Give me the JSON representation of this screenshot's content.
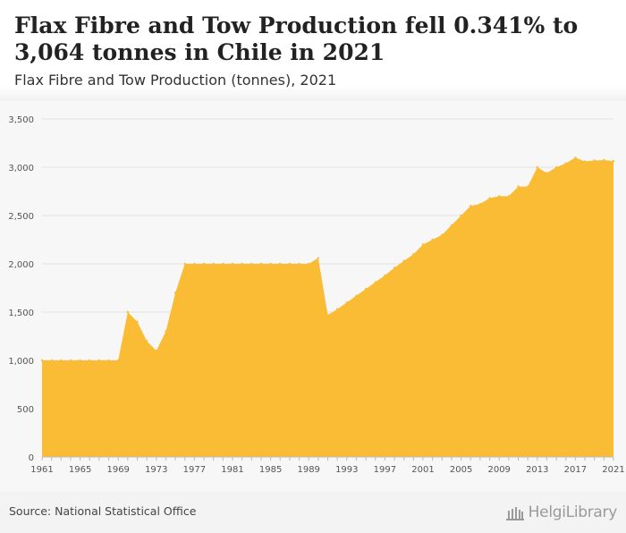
{
  "header": {
    "title": "Flax Fibre and Tow Production fell 0.341% to 3,064 tonnes in Chile in 2021",
    "subtitle": "Flax Fibre and Tow Production (tonnes), 2021"
  },
  "footer": {
    "source": "Source: National Statistical Office",
    "logo_text": "HelgiLibrary"
  },
  "colors": {
    "area_fill": "#f9bc34",
    "grid": "#e2e2e2",
    "axis_text": "#555555"
  },
  "chart_data": {
    "type": "area",
    "title": "",
    "xlabel": "",
    "ylabel": "",
    "x": [
      1961,
      1962,
      1963,
      1964,
      1965,
      1966,
      1967,
      1968,
      1969,
      1970,
      1971,
      1972,
      1973,
      1974,
      1975,
      1976,
      1977,
      1978,
      1979,
      1980,
      1981,
      1982,
      1983,
      1984,
      1985,
      1986,
      1987,
      1988,
      1989,
      1990,
      1991,
      1992,
      1993,
      1994,
      1995,
      1996,
      1997,
      1998,
      1999,
      2000,
      2001,
      2002,
      2003,
      2004,
      2005,
      2006,
      2007,
      2008,
      2009,
      2010,
      2011,
      2012,
      2013,
      2014,
      2015,
      2016,
      2017,
      2018,
      2019,
      2020,
      2021
    ],
    "series": [
      {
        "values": [
          1000,
          1000,
          1000,
          1000,
          1000,
          1000,
          1000,
          1000,
          1000,
          1500,
          1400,
          1200,
          1100,
          1300,
          1700,
          2000,
          2000,
          2000,
          2000,
          2000,
          2000,
          2000,
          2000,
          2000,
          2000,
          2000,
          2000,
          2000,
          2000,
          2060,
          1470,
          1530,
          1600,
          1670,
          1740,
          1810,
          1880,
          1960,
          2030,
          2100,
          2200,
          2250,
          2300,
          2400,
          2500,
          2600,
          2620,
          2680,
          2700,
          2700,
          2800,
          2800,
          3000,
          2940,
          3000,
          3040,
          3100,
          3060,
          3070,
          3074,
          3064
        ]
      }
    ],
    "ylim": [
      0,
      3500
    ],
    "yticks": [
      0,
      500,
      1000,
      1500,
      2000,
      2500,
      3000,
      3500
    ],
    "ytick_labels": [
      "0",
      "500",
      "1,000",
      "1,500",
      "2,000",
      "2,500",
      "3,000",
      "3,500"
    ],
    "xticks": [
      1961,
      1965,
      1969,
      1973,
      1977,
      1981,
      1985,
      1989,
      1993,
      1997,
      2001,
      2005,
      2009,
      2013,
      2017,
      2021
    ],
    "xtick_labels": [
      "1961",
      "1965",
      "1969",
      "1973",
      "1977",
      "1981",
      "1985",
      "1989",
      "1993",
      "1997",
      "2001",
      "2005",
      "2009",
      "2013",
      "2017",
      "2021"
    ],
    "grid": true,
    "legend": "none"
  }
}
